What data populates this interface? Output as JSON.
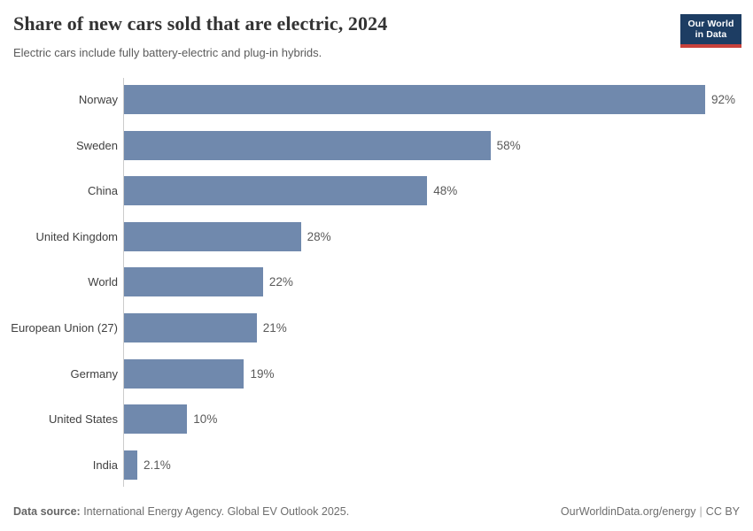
{
  "header": {
    "title": "Share of new cars sold that are electric, 2024",
    "subtitle": "Electric cars include fully battery-electric and plug-in hybrids.",
    "logo": {
      "line1": "Our World",
      "line2": "in Data"
    }
  },
  "chart_data": {
    "type": "bar",
    "orientation": "horizontal",
    "title": "Share of new cars sold that are electric, 2024",
    "subtitle": "Electric cars include fully battery-electric and plug-in hybrids.",
    "categories": [
      "Norway",
      "Sweden",
      "China",
      "United Kingdom",
      "World",
      "European Union (27)",
      "Germany",
      "United States",
      "India"
    ],
    "values": [
      92,
      58,
      48,
      28,
      22,
      21,
      19,
      10,
      2.1
    ],
    "value_labels": [
      "92%",
      "58%",
      "48%",
      "28%",
      "22%",
      "21%",
      "19%",
      "10%",
      "2.1%"
    ],
    "xlabel": "",
    "ylabel": "",
    "xlim": [
      0,
      92
    ],
    "unit": "%",
    "grid": false,
    "legend": "none",
    "bar_color": "#7089ad"
  },
  "footer": {
    "source_label": "Data source:",
    "source_text": " International Energy Agency. Global EV Outlook 2025.",
    "credit": "OurWorldinData.org/energy",
    "separator": "|",
    "license": "CC BY"
  },
  "colors": {
    "bar": "#7089ad",
    "axis_line": "#cccccc",
    "title_text": "#333333",
    "subtitle_text": "#5b5b5b",
    "category_text": "#404040",
    "value_text": "#5a5a5a",
    "footer_text": "#6e6e6e",
    "logo_navy": "#1d3d63",
    "logo_red": "#c8413b",
    "background": "#ffffff"
  }
}
